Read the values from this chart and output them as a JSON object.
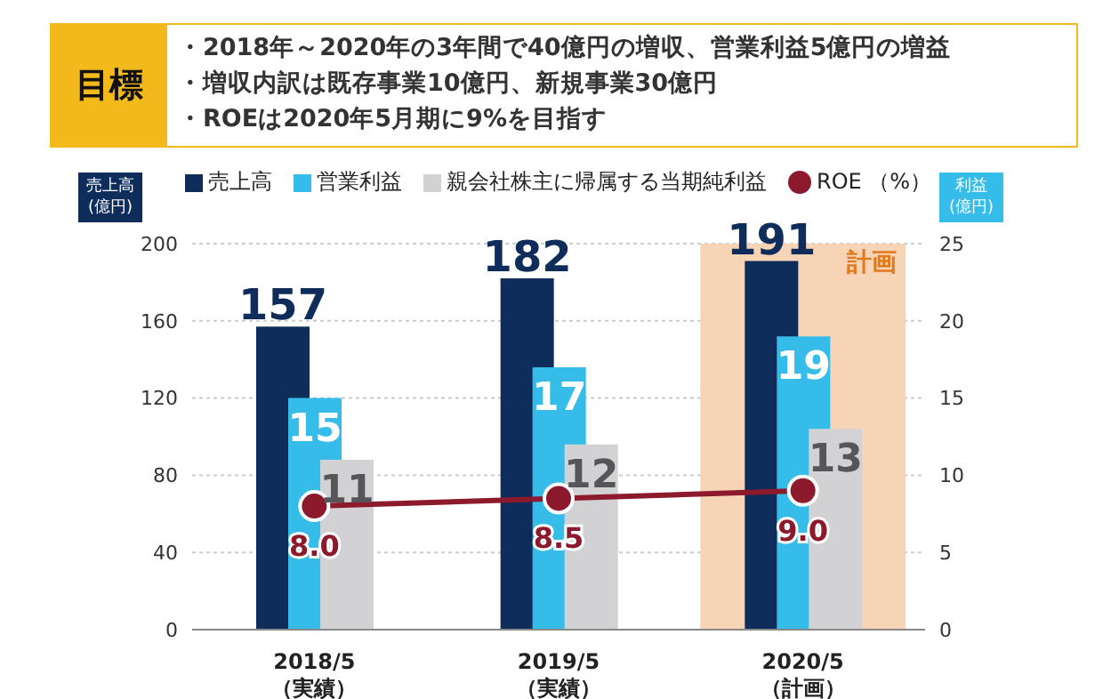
{
  "chart_data": {
    "type": "bar",
    "title": "目標",
    "annotations": [
      "・2018年～2020年の3年間で40億円の増収、営業利益5億円の増益",
      "・増収内訳は既存事業10億円、新規事業30億円",
      "・ROEは2020年5月期に9%を目指す"
    ],
    "categories": [
      "2018/5\n（実績）",
      "2019/5\n（実績）",
      "2020/5\n（計画）"
    ],
    "ylabel": "売上高\n(億円)",
    "y2label": "利益\n(億円)",
    "series": [
      {
        "name": "売上高",
        "color": "#0f2d5b",
        "values": [
          157,
          182,
          191
        ]
      },
      {
        "name": "営業利益",
        "color": "#36bce9",
        "values": [
          15,
          17,
          19
        ],
        "axis": "y2"
      },
      {
        "name": "親会社株主に帰属する当期純利益",
        "color": "#d2d2d4",
        "values": [
          11,
          12,
          13
        ],
        "axis": "y2"
      },
      {
        "name": "ROE （%）",
        "type": "line",
        "color": "#8c1a2c",
        "values": [
          8.0,
          8.5,
          9.0
        ],
        "value_labels": [
          "8.0",
          "8.5",
          "9.0"
        ],
        "axis": "y2",
        "marker": "circle"
      }
    ],
    "ylim": [
      0,
      200
    ],
    "yticks": [
      0,
      40,
      80,
      120,
      160,
      200
    ],
    "y2lim": [
      0,
      25
    ],
    "y2ticks": [
      0,
      5,
      10,
      15,
      20,
      25
    ],
    "bands": [
      {
        "axis": "x",
        "from": "2020/5\n（計画）",
        "to": "2020/5\n（計画）",
        "label": "計画",
        "color": "#f8d4b6"
      }
    ],
    "grid": "y",
    "legend": "top",
    "data_labels": true
  }
}
